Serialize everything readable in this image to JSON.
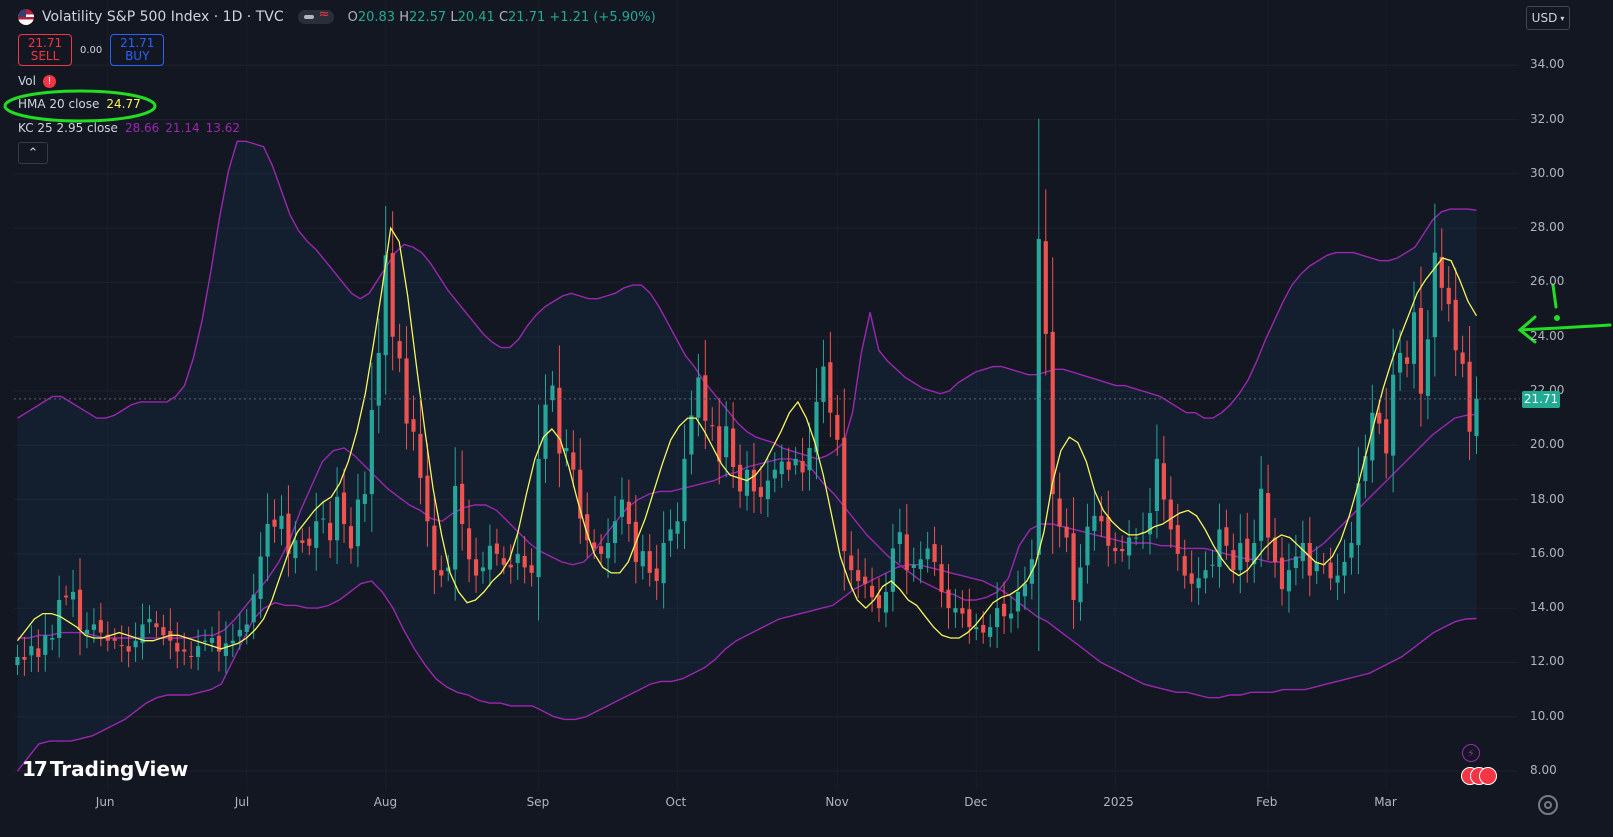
{
  "header": {
    "symbol_title": "Volatility S&P 500 Index · 1D · TVC",
    "ohlc": {
      "o_label": "O",
      "o": "20.83",
      "h_label": "H",
      "h": "22.57",
      "l_label": "L",
      "l": "20.41",
      "c_label": "C",
      "c": "21.71",
      "change": "+1.21 (+5.90%)"
    }
  },
  "trade": {
    "sell_price": "21.71",
    "sell_label": "SELL",
    "spread": "0.00",
    "buy_price": "21.71",
    "buy_label": "BUY"
  },
  "indicators": {
    "vol_label": "Vol",
    "hma_label": "HMA 20 close",
    "hma_value": "24.77",
    "kc_label": "KC 25 2.95 close",
    "kc_upper": "28.66",
    "kc_mid": "21.14",
    "kc_lower": "13.62"
  },
  "currency": "USD",
  "last_price_tag": "21.71",
  "logo_text": "TradingView",
  "colors": {
    "up": "#26a69a",
    "down": "#ef5350",
    "hma": "#f7f75b",
    "kc": "#9c27b0",
    "annotation": "#22dd22",
    "bg": "#131722"
  },
  "chart_data": {
    "type": "candlestick",
    "title": "Volatility S&P 500 Index · 1D · TVC",
    "y_ticks": [
      34,
      32,
      30,
      28,
      26,
      24,
      22,
      20,
      18,
      16,
      14,
      12,
      10,
      8
    ],
    "y_tick_labels": [
      "34.00",
      "32.00",
      "30.00",
      "28.00",
      "26.00",
      "24.00",
      "22.00",
      "20.00",
      "18.00",
      "16.00",
      "14.00",
      "12.00",
      "10.00",
      "8.00"
    ],
    "x_tick_labels": [
      "Jun",
      "Jul",
      "Aug",
      "Sep",
      "Oct",
      "Nov",
      "Dec",
      "2025",
      "Feb",
      "Mar"
    ],
    "x_tick_index": [
      13,
      33,
      53,
      75,
      95,
      118,
      138,
      158,
      180,
      197
    ],
    "ylim": [
      7.3,
      35.3
    ],
    "last_price": 21.71,
    "closes": [
      12.2,
      12.1,
      12.6,
      12.2,
      13.0,
      12.9,
      14.3,
      14.4,
      14.6,
      13.2,
      13.2,
      13.4,
      13.1,
      12.8,
      12.8,
      12.6,
      12.4,
      12.8,
      13.4,
      13.6,
      13.3,
      13.0,
      12.8,
      12.4,
      12.4,
      12.2,
      12.6,
      12.8,
      12.9,
      12.4,
      12.7,
      12.8,
      13.2,
      13.4,
      14.5,
      15.9,
      17.1,
      17.0,
      17.4,
      16.0,
      16.5,
      16.4,
      16.3,
      17.2,
      17.3,
      16.5,
      18.1,
      17.1,
      16.2,
      18.0,
      18.2,
      21.3,
      23.4,
      27.0,
      24.0,
      23.2,
      20.8,
      20.5,
      18.8,
      17.2,
      15.4,
      15.2,
      15.5,
      18.5,
      17.1,
      15.8,
      15.2,
      15.5,
      16.3,
      16.0,
      15.6,
      15.5,
      16.0,
      15.5,
      15.3,
      19.5,
      21.5,
      22.2,
      19.7,
      19.9,
      19.1,
      17.3,
      16.5,
      16.2,
      16.0,
      16.4,
      17.2,
      18.0,
      17.1,
      15.7,
      16.1,
      15.3,
      15.0,
      16.4,
      16.9,
      17.2,
      19.5,
      21.1,
      22.5,
      20.9,
      20.7,
      19.4,
      20.7,
      19.2,
      18.3,
      19.1,
      18.3,
      18.1,
      18.7,
      19.1,
      19.4,
      19.1,
      19.5,
      19.0,
      19.9,
      21.6,
      22.9,
      21.2,
      20.2,
      16.1,
      15.4,
      15.0,
      14.9,
      14.4,
      14.0,
      14.6,
      16.2,
      16.8,
      15.4,
      15.6,
      15.8,
      16.2,
      15.7,
      14.6,
      14.0,
      14.0,
      13.8,
      13.3,
      13.3,
      13.1,
      13.3,
      14.0,
      13.7,
      13.8,
      14.6,
      14.9,
      15.8,
      27.6,
      24.1,
      18.2,
      17.0,
      16.6,
      14.3,
      15.5,
      17.0,
      17.4,
      17.2,
      16.3,
      16.1,
      16.1,
      16.6,
      16.6,
      16.8,
      17.5,
      19.5,
      18.0,
      16.9,
      16.0,
      15.2,
      14.9,
      15.1,
      15.4,
      15.6,
      16.9,
      16.3,
      15.4,
      16.4,
      15.7,
      16.4,
      18.4,
      16.6,
      15.7,
      14.7,
      15.4,
      15.9,
      16.4,
      15.2,
      15.7,
      15.6,
      15.1,
      15.2,
      15.7,
      16.4,
      18.6,
      19.6,
      21.2,
      20.8,
      19.7,
      22.6,
      23.4,
      23.0,
      24.9,
      21.9,
      23.9,
      27.1,
      25.8,
      25.2,
      23.5,
      23.0,
      20.5,
      21.71
    ],
    "hma_series": [
      12.8,
      13.2,
      13.6,
      13.8,
      13.8,
      13.7,
      13.5,
      13.3,
      13.0,
      12.9,
      12.9,
      13.0,
      13.1,
      13.0,
      12.9,
      12.8,
      12.8,
      12.9,
      13.0,
      13.0,
      12.9,
      12.8,
      12.7,
      12.6,
      12.5,
      12.6,
      12.7,
      12.9,
      13.2,
      13.6,
      14.3,
      15.2,
      16.1,
      16.8,
      17.2,
      17.6,
      17.9,
      18.1,
      18.6,
      19.4,
      20.5,
      21.9,
      23.8,
      25.8,
      28.0,
      27.5,
      25.5,
      23.0,
      20.6,
      18.4,
      16.7,
      15.3,
      14.6,
      14.2,
      14.3,
      14.6,
      15.0,
      15.3,
      15.8,
      16.8,
      18.2,
      19.5,
      20.3,
      20.6,
      20.2,
      19.2,
      18.0,
      16.9,
      16.0,
      15.5,
      15.3,
      15.3,
      15.7,
      16.5,
      17.3,
      18.3,
      19.3,
      20.2,
      20.7,
      21.0,
      21.0,
      20.5,
      19.9,
      19.3,
      18.9,
      18.8,
      18.7,
      18.9,
      19.3,
      19.9,
      20.5,
      21.2,
      21.6,
      21.0,
      20.1,
      18.9,
      17.4,
      15.9,
      15.0,
      14.3,
      14.0,
      14.3,
      14.8,
      15.0,
      14.7,
      14.3,
      14.1,
      13.7,
      13.3,
      13.0,
      12.9,
      12.9,
      13.1,
      13.4,
      13.8,
      14.2,
      14.4,
      14.5,
      14.7,
      15.0,
      15.6,
      16.8,
      18.6,
      19.8,
      20.3,
      20.1,
      19.4,
      18.3,
      17.6,
      17.2,
      16.9,
      16.7,
      16.7,
      16.8,
      17.0,
      17.1,
      17.3,
      17.5,
      17.6,
      17.4,
      16.9,
      16.3,
      15.8,
      15.4,
      15.2,
      15.4,
      15.8,
      16.2,
      16.5,
      16.7,
      16.6,
      16.3,
      16.0,
      15.7,
      15.6,
      15.9,
      16.5,
      17.4,
      18.5,
      19.7,
      20.9,
      22.1,
      23.1,
      24.0,
      24.8,
      25.6,
      26.1,
      26.5,
      26.9,
      26.8,
      26.1,
      25.3,
      24.77
    ],
    "kc_upper": [
      21.0,
      21.2,
      21.4,
      21.6,
      21.8,
      21.8,
      21.6,
      21.4,
      21.2,
      21.0,
      21.0,
      21.1,
      21.3,
      21.5,
      21.6,
      21.6,
      21.6,
      21.6,
      21.8,
      22.2,
      23.2,
      24.6,
      26.4,
      28.4,
      30.1,
      31.2,
      31.2,
      31.1,
      31.0,
      30.3,
      29.4,
      28.5,
      27.9,
      27.5,
      27.2,
      26.8,
      26.4,
      26.0,
      25.6,
      25.4,
      25.6,
      26.1,
      26.6,
      27.1,
      27.4,
      27.3,
      27.1,
      26.7,
      26.2,
      25.7,
      25.3,
      24.9,
      24.5,
      24.1,
      23.8,
      23.6,
      23.6,
      23.9,
      24.4,
      24.8,
      25.1,
      25.3,
      25.5,
      25.6,
      25.5,
      25.4,
      25.4,
      25.5,
      25.6,
      25.8,
      25.9,
      25.9,
      25.6,
      25.1,
      24.5,
      23.9,
      23.3,
      22.9,
      22.4,
      22.0,
      21.6,
      21.2,
      20.8,
      20.5,
      20.3,
      20.2,
      20.1,
      19.9,
      19.8,
      19.7,
      19.6,
      19.5,
      19.6,
      19.8,
      20.1,
      21.2,
      23.4,
      24.9,
      23.5,
      23.1,
      22.8,
      22.5,
      22.3,
      22.1,
      22.0,
      21.9,
      22.0,
      22.3,
      22.5,
      22.7,
      22.8,
      22.9,
      22.9,
      22.8,
      22.7,
      22.6,
      22.6,
      22.7,
      22.8,
      22.8,
      22.7,
      22.6,
      22.5,
      22.4,
      22.3,
      22.2,
      22.2,
      22.1,
      22.0,
      21.9,
      21.8,
      21.6,
      21.4,
      21.2,
      21.2,
      21.0,
      21.0,
      21.2,
      21.5,
      21.9,
      22.4,
      23.1,
      23.9,
      24.6,
      25.3,
      25.9,
      26.3,
      26.6,
      26.8,
      27.0,
      27.1,
      27.1,
      27.1,
      27.0,
      26.9,
      26.8,
      26.8,
      26.9,
      27.1,
      27.3,
      27.8,
      28.3,
      28.6,
      28.7,
      28.7,
      28.7,
      28.66
    ],
    "kc_mid": [
      12.9,
      12.9,
      13.0,
      13.0,
      13.1,
      13.1,
      13.1,
      13.0,
      12.9,
      12.9,
      12.9,
      12.9,
      12.9,
      12.9,
      12.9,
      12.9,
      12.9,
      13.0,
      13.0,
      13.2,
      13.6,
      14.1,
      14.6,
      15.1,
      15.7,
      16.5,
      17.6,
      18.5,
      19.4,
      19.8,
      19.9,
      19.6,
      19.2,
      18.8,
      18.4,
      18.1,
      17.8,
      17.6,
      17.3,
      17.2,
      17.5,
      17.7,
      17.8,
      17.8,
      17.6,
      17.2,
      16.8,
      16.4,
      16.1,
      15.9,
      15.7,
      15.6,
      15.7,
      16.1,
      16.7,
      17.2,
      17.7,
      18.0,
      18.2,
      18.3,
      18.3,
      18.4,
      18.5,
      18.6,
      18.7,
      18.9,
      19.0,
      19.2,
      19.3,
      19.4,
      19.5,
      19.5,
      19.4,
      19.1,
      18.6,
      18.2,
      17.7,
      17.2,
      16.7,
      16.3,
      15.9,
      15.6,
      15.3,
      15.0,
      14.8,
      14.6,
      14.5,
      14.3,
      14.3,
      14.4,
      14.6,
      15.1,
      16.3,
      16.9,
      17.1,
      17.1,
      17.0,
      16.9,
      16.8,
      16.7,
      16.6,
      16.5,
      16.4,
      16.4,
      16.4,
      16.3,
      16.3,
      16.2,
      16.2,
      16.2,
      16.1,
      16.0,
      15.9,
      15.8,
      15.8,
      15.7,
      15.7,
      15.8,
      15.9,
      16.1,
      16.4,
      16.8,
      17.2,
      17.6,
      18.0,
      18.4,
      18.8,
      19.2,
      19.6,
      20.0,
      20.4,
      20.7,
      21.0,
      21.1,
      21.14
    ],
    "kc_lower": [
      8.0,
      8.5,
      9.0,
      9.1,
      9.1,
      9.1,
      9.2,
      9.3,
      9.5,
      9.7,
      9.9,
      10.2,
      10.5,
      10.7,
      10.8,
      10.8,
      10.8,
      10.9,
      11.0,
      11.2,
      12.0,
      12.8,
      13.6,
      14.0,
      14.2,
      14.1,
      14.1,
      14.0,
      14.0,
      14.1,
      14.3,
      14.6,
      14.9,
      15.0,
      14.6,
      14.0,
      13.2,
      12.5,
      11.9,
      11.4,
      11.1,
      10.9,
      10.8,
      10.6,
      10.5,
      10.5,
      10.4,
      10.4,
      10.4,
      10.2,
      10.0,
      9.9,
      9.9,
      10.0,
      10.2,
      10.4,
      10.6,
      10.8,
      11.0,
      11.2,
      11.3,
      11.3,
      11.4,
      11.6,
      11.8,
      12.1,
      12.5,
      12.8,
      13.0,
      13.2,
      13.4,
      13.6,
      13.7,
      13.8,
      13.9,
      14.0,
      14.1,
      14.4,
      14.7,
      14.9,
      15.1,
      15.3,
      15.5,
      15.6,
      15.6,
      15.5,
      15.4,
      15.3,
      15.2,
      15.1,
      15.0,
      14.8,
      14.6,
      14.3,
      14.0,
      13.7,
      13.5,
      13.2,
      12.9,
      12.6,
      12.3,
      12.0,
      11.8,
      11.6,
      11.4,
      11.2,
      11.1,
      11.0,
      10.9,
      10.9,
      10.8,
      10.7,
      10.7,
      10.8,
      10.8,
      10.9,
      10.9,
      10.9,
      11.0,
      11.0,
      11.0,
      11.1,
      11.2,
      11.3,
      11.4,
      11.5,
      11.6,
      11.8,
      12.0,
      12.2,
      12.5,
      12.8,
      13.1,
      13.3,
      13.5,
      13.6,
      13.62
    ]
  }
}
